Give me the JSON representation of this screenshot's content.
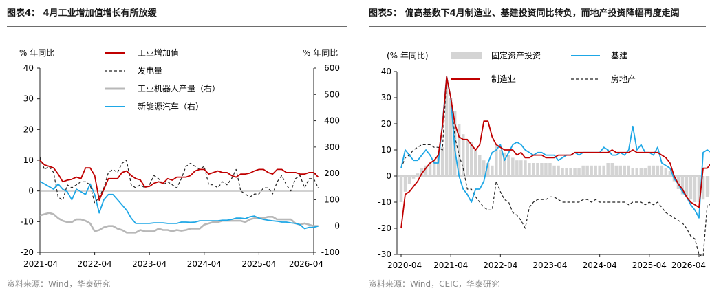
{
  "left": {
    "title": "图表4： 4月工业增加值增长有所放缓",
    "source": "资料来源：Wind，华泰研究",
    "y_left_label": "% 年同比",
    "y_right_label": "% 年同比",
    "legend": [
      "工业增加值",
      "发电量",
      "工业机器人产量（右）",
      "新能源汽车（右）"
    ]
  },
  "right": {
    "title": "图表5： 偏高基数下4月制造业、基建投资同比转负，而地产投资降幅再度走阔",
    "source": "资料来源：Wind，CEIC，华泰研究",
    "y_label": "(% 年同比)",
    "legend": [
      "固定资产投资",
      "基建",
      "制造业",
      "房地产"
    ]
  },
  "chart_data": [
    {
      "type": "line",
      "x_start": "2021-04",
      "x_ticks": [
        "2021-04",
        "2022-04",
        "2023-04",
        "2024-04",
        "2025-04",
        "2026-04"
      ],
      "y_left_lim": [
        -20,
        40
      ],
      "y_left_ticks": [
        "-20",
        "-10",
        "0",
        "10",
        "20",
        "30",
        "40"
      ],
      "y_right_lim": [
        -100,
        600
      ],
      "y_right_ticks": [
        "-100",
        "0",
        "100",
        "200",
        "300",
        "400",
        "500",
        "600"
      ],
      "series": [
        {
          "name": "工业增加值",
          "axis": "left",
          "color": "#c00000",
          "style": "solid",
          "values": [
            10,
            8.5,
            8,
            7.5,
            5.5,
            3,
            3.5,
            3.8,
            4.5,
            4,
            7.5,
            7.5,
            5,
            -3,
            0.5,
            4,
            4,
            4,
            6,
            6.5,
            5,
            4,
            3.6,
            1.3,
            1.5,
            2.5,
            3,
            2.5,
            4,
            3.5,
            4.5,
            4.5,
            4.5,
            5,
            6.5,
            7,
            7,
            5.5,
            6,
            6.5,
            6,
            6,
            5,
            4.5,
            5.5,
            5.5,
            5.8,
            6.5,
            7,
            7,
            6,
            5.5,
            7,
            7,
            6,
            6,
            6,
            5.5,
            5.5,
            6,
            6,
            4.5
          ]
        },
        {
          "name": "发电量",
          "axis": "left",
          "color": "#222222",
          "style": "dashed",
          "values": [
            11,
            7,
            8,
            6,
            -2,
            -3,
            2,
            1,
            2,
            3,
            3,
            2,
            -4,
            -2,
            1,
            6,
            7,
            6,
            9,
            10,
            2,
            1,
            2,
            1,
            2,
            5,
            4,
            2,
            3,
            2,
            1,
            4,
            8,
            9,
            8,
            7,
            8,
            2,
            2,
            1,
            3,
            2,
            4,
            7,
            0,
            -1,
            -2,
            -1,
            -1,
            1,
            1,
            -1,
            3,
            5,
            2,
            0,
            4,
            5,
            1,
            4,
            4,
            1
          ]
        },
        {
          "name": "工业机器人产量（右）",
          "axis": "right",
          "color": "#b8b8b8",
          "style": "solid",
          "values": [
            40,
            45,
            50,
            45,
            30,
            20,
            15,
            15,
            25,
            25,
            20,
            10,
            -20,
            -15,
            -5,
            0,
            0,
            -10,
            -15,
            -25,
            -25,
            -25,
            -15,
            -20,
            -20,
            -20,
            -10,
            -15,
            -15,
            -20,
            -15,
            -18,
            -15,
            -10,
            -10,
            -10,
            5,
            10,
            15,
            15,
            20,
            20,
            20,
            20,
            20,
            15,
            25,
            30,
            30,
            30,
            35,
            35,
            25,
            25,
            25,
            25,
            10,
            5,
            10,
            5,
            0,
            0
          ]
        },
        {
          "name": "新能源汽车（右）",
          "axis": "right",
          "color": "#1ea7e6",
          "style": "solid",
          "values": [
            170,
            160,
            150,
            140,
            160,
            140,
            130,
            100,
            140,
            130,
            120,
            160,
            120,
            50,
            100,
            120,
            120,
            100,
            80,
            60,
            30,
            10,
            10,
            10,
            10,
            12,
            12,
            12,
            10,
            10,
            10,
            15,
            15,
            14,
            15,
            20,
            20,
            20,
            20,
            20,
            22,
            22,
            25,
            30,
            30,
            28,
            35,
            38,
            30,
            25,
            22,
            20,
            18,
            15,
            15,
            12,
            10,
            5,
            -10,
            -5,
            -5,
            0
          ]
        }
      ]
    },
    {
      "type": "bar+line",
      "x_start": "2020-04",
      "x_ticks": [
        "2020-04",
        "2021-04",
        "2022-04",
        "2023-04",
        "2024-04",
        "2025-04",
        "2026-04"
      ],
      "ylim": [
        -30,
        40
      ],
      "y_ticks": [
        "-30",
        "-20",
        "-10",
        "0",
        "10",
        "20",
        "30",
        "40"
      ],
      "bars": {
        "name": "固定资产投资",
        "color": "#d4d4d4",
        "values": [
          -10,
          -6,
          -3,
          -1,
          1,
          3,
          4,
          5,
          6,
          8,
          11,
          35,
          30,
          25,
          20,
          16,
          14,
          13,
          10,
          8,
          6,
          5,
          4,
          12,
          10,
          9,
          8,
          7,
          6,
          6,
          6,
          5,
          5,
          5,
          5,
          5,
          5,
          4,
          4,
          3,
          3,
          3,
          3,
          3,
          4,
          4,
          4,
          4,
          4,
          4,
          5,
          5,
          4,
          4,
          4,
          4,
          3,
          3,
          3,
          3,
          4,
          4,
          4,
          4,
          3,
          2,
          -2,
          -5,
          -7,
          -8,
          -9,
          -10,
          -10,
          -9,
          -8,
          -7,
          -2
        ]
      },
      "series": [
        {
          "name": "基建",
          "color": "#1ea7e6",
          "style": "solid",
          "values": [
            3,
            10,
            8,
            6,
            6,
            8,
            10,
            8,
            5,
            5,
            20,
            38,
            30,
            10,
            0,
            -5,
            -7,
            -10,
            -5,
            -5,
            -2,
            5,
            9,
            10,
            12,
            6,
            9,
            12,
            13,
            12,
            10,
            9,
            8,
            9,
            9,
            8,
            8,
            8,
            6,
            7,
            8,
            8,
            9,
            8,
            9,
            9,
            9,
            9,
            9,
            11,
            10,
            8,
            8,
            9,
            8,
            10,
            19,
            10,
            12,
            9,
            9,
            8,
            11,
            5,
            4,
            3,
            -1,
            -3,
            -6,
            -8,
            -11,
            -13,
            -16,
            9,
            10,
            9,
            -4
          ]
        },
        {
          "name": "制造业",
          "color": "#c00000",
          "style": "solid",
          "values": [
            -20,
            -7,
            -6,
            -4,
            -2,
            1,
            3,
            5,
            6,
            8,
            19,
            38,
            30,
            20,
            15,
            14,
            14,
            12,
            10,
            12,
            21,
            21,
            15,
            12,
            11,
            10,
            10,
            10,
            8,
            9,
            7,
            7,
            8,
            8,
            8,
            7,
            7,
            7,
            8,
            8,
            8,
            8,
            9,
            9,
            9,
            9,
            9,
            9,
            9,
            9,
            9,
            10,
            9,
            9,
            9,
            9,
            10,
            9,
            9,
            9,
            9,
            9,
            9,
            8,
            7,
            5,
            0,
            -3,
            -5,
            -8,
            -10,
            -11,
            -12,
            3,
            3,
            5,
            -4
          ]
        },
        {
          "name": "房地产",
          "color": "#222222",
          "style": "dashed",
          "values": [
            3,
            7,
            8,
            10,
            11,
            12,
            12,
            12,
            11,
            11,
            10,
            38,
            30,
            15,
            8,
            3,
            -5,
            -5,
            -8,
            -10,
            -12,
            -13,
            -13,
            -2,
            -6,
            -9,
            -10,
            -14,
            -15,
            -17,
            -20,
            -12,
            -10,
            -9,
            -9,
            -9,
            -8,
            -8,
            -9,
            -10,
            -10,
            -10,
            -10,
            -10,
            -9,
            -9,
            -10,
            -9,
            -10,
            -10,
            -10,
            -10,
            -10,
            -10,
            -10,
            -11,
            -10,
            -10,
            -10,
            -11,
            -10,
            -11,
            -10,
            -12,
            -14,
            -15,
            -16,
            -17,
            -18,
            -20,
            -23,
            -24,
            -30,
            -31,
            -11,
            -11,
            -14
          ]
        }
      ]
    }
  ]
}
